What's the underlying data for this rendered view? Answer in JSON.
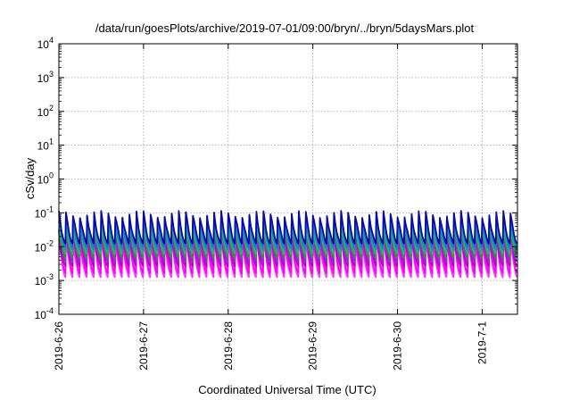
{
  "chart_data": {
    "type": "line",
    "title": "/data/run/goesPlots/archive/2019-07-01/09:00/bryn/../bryn/5daysMars.plot",
    "xlabel": "Coordinated Universal Time (UTC)",
    "ylabel": "cSv/day",
    "y_scale": "log",
    "ylim": [
      0.0001,
      10000
    ],
    "xlim": [
      "2019-06-26 00:00",
      "2019-07-01 10:00"
    ],
    "grid": true,
    "legend": "none",
    "y_ticks": [
      {
        "base": "10",
        "exp": "-4",
        "value": 0.0001
      },
      {
        "base": "10",
        "exp": "-3",
        "value": 0.001
      },
      {
        "base": "10",
        "exp": "-2",
        "value": 0.01
      },
      {
        "base": "10",
        "exp": "-1",
        "value": 0.1
      },
      {
        "base": "10",
        "exp": "0",
        "value": 1
      },
      {
        "base": "10",
        "exp": "1",
        "value": 10
      },
      {
        "base": "10",
        "exp": "2",
        "value": 100
      },
      {
        "base": "10",
        "exp": "3",
        "value": 1000
      },
      {
        "base": "10",
        "exp": "4",
        "value": 10000
      }
    ],
    "x_ticks": [
      {
        "label": "2019-6-26",
        "value": "2019-06-26"
      },
      {
        "label": "2019-6-27",
        "value": "2019-06-27"
      },
      {
        "label": "2019-6-28",
        "value": "2019-06-28"
      },
      {
        "label": "2019-6-29",
        "value": "2019-06-29"
      },
      {
        "label": "2019-6-30",
        "value": "2019-06-30"
      },
      {
        "label": "2019-7-1",
        "value": "2019-07-01"
      }
    ],
    "pattern": {
      "cycles_per_day": 12,
      "description": "sawtooth dose-rate oscillation, peak at the start of each cycle then decay"
    },
    "series": [
      {
        "color": "#0a0aa8",
        "peak": 0.09,
        "trough": 0.012
      },
      {
        "color": "#1e6ee6",
        "peak": 0.075,
        "trough": 0.01
      },
      {
        "color": "#00a0a0",
        "peak": 0.06,
        "trough": 0.008
      },
      {
        "color": "#2ab07a",
        "peak": 0.045,
        "trough": 0.006
      },
      {
        "color": "#3c8c3c",
        "peak": 0.035,
        "trough": 0.0045
      },
      {
        "color": "#8a2be2",
        "peak": 0.03,
        "trough": 0.0035
      },
      {
        "color": "#c000c0",
        "peak": 0.025,
        "trough": 0.0025
      },
      {
        "color": "#ff00ff",
        "peak": 0.02,
        "trough": 0.0016
      },
      {
        "color": "#ff33ff",
        "peak": 0.016,
        "trough": 0.0012
      }
    ]
  }
}
